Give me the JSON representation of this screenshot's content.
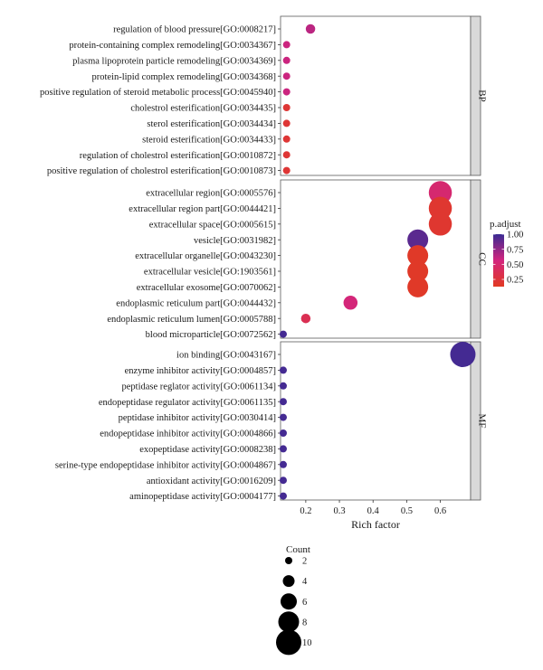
{
  "chart_data": {
    "type": "scatter",
    "xlabel": "Rich factor",
    "ylabel": "",
    "xlim": [
      0.125,
      0.69
    ],
    "x_ticks": [
      "0.2",
      "0.3",
      "0.4",
      "0.5",
      "0.6"
    ],
    "x_tick_values": [
      0.2,
      0.3,
      0.4,
      0.5,
      0.6
    ],
    "grid": false,
    "colors": {
      "low": "#e13a22",
      "mid": "#d3257e",
      "high": "#3a2a93"
    },
    "panels": [
      {
        "name": "BP",
        "terms": [
          {
            "label": "regulation of blood pressure[GO:0008217]",
            "x": 0.214,
            "p": 0.6,
            "count": 3
          },
          {
            "label": "protein-containing complex remodeling[GO:0034367]",
            "x": 0.143,
            "p": 0.55,
            "count": 2
          },
          {
            "label": "plasma lipoprotein particle remodeling[GO:0034369]",
            "x": 0.143,
            "p": 0.55,
            "count": 2
          },
          {
            "label": "protein-lipid complex remodeling[GO:0034368]",
            "x": 0.143,
            "p": 0.55,
            "count": 2
          },
          {
            "label": "positive regulation of steroid metabolic process[GO:0045940]",
            "x": 0.143,
            "p": 0.55,
            "count": 2
          },
          {
            "label": "cholestrol esterification[GO:0034435]",
            "x": 0.143,
            "p": 0.15,
            "count": 2
          },
          {
            "label": "sterol esterification[GO:0034434]",
            "x": 0.143,
            "p": 0.15,
            "count": 2
          },
          {
            "label": "steroid esterification[GO:0034433]",
            "x": 0.143,
            "p": 0.15,
            "count": 2
          },
          {
            "label": "regulation of cholestrol esterification[GO:0010872]",
            "x": 0.143,
            "p": 0.15,
            "count": 2
          },
          {
            "label": "positive regulation of cholestrol esterification[GO:0010873]",
            "x": 0.143,
            "p": 0.15,
            "count": 2
          }
        ]
      },
      {
        "name": "CC",
        "terms": [
          {
            "label": "extracellular region[GO:0005576]",
            "x": 0.6,
            "p": 0.45,
            "count": 9
          },
          {
            "label": "extracellular region part[GO:0044421]",
            "x": 0.6,
            "p": 0.12,
            "count": 9
          },
          {
            "label": "extracellular space[GO:0005615]",
            "x": 0.6,
            "p": 0.12,
            "count": 9
          },
          {
            "label": "vesicle[GO:0031982]",
            "x": 0.533,
            "p": 0.9,
            "count": 8
          },
          {
            "label": "extracellular organelle[GO:0043230]",
            "x": 0.533,
            "p": 0.08,
            "count": 8
          },
          {
            "label": "extracellular vesicle[GO:1903561]",
            "x": 0.533,
            "p": 0.08,
            "count": 8
          },
          {
            "label": "extracellular exosome[GO:0070062]",
            "x": 0.533,
            "p": 0.08,
            "count": 8
          },
          {
            "label": "endoplasmic reticulum part[GO:0044432]",
            "x": 0.333,
            "p": 0.5,
            "count": 5
          },
          {
            "label": "endoplasmic reticulum lumen[GO:0005788]",
            "x": 0.2,
            "p": 0.3,
            "count": 3
          },
          {
            "label": "blood microparticle[GO:0072562]",
            "x": 0.133,
            "p": 0.97,
            "count": 2
          }
        ]
      },
      {
        "name": "MF",
        "terms": [
          {
            "label": "ion binding[GO:0043167]",
            "x": 0.667,
            "p": 0.97,
            "count": 10
          },
          {
            "label": "enzyme inhibitor activity[GO:0004857]",
            "x": 0.133,
            "p": 0.97,
            "count": 2
          },
          {
            "label": "peptidase reglator activity[GO:0061134]",
            "x": 0.133,
            "p": 0.97,
            "count": 2
          },
          {
            "label": "endopeptidase regulator activity[GO:0061135]",
            "x": 0.133,
            "p": 0.97,
            "count": 2
          },
          {
            "label": "peptidase inhibitor activity[GO:0030414]",
            "x": 0.133,
            "p": 0.97,
            "count": 2
          },
          {
            "label": "endopeptidase inhibitor activity[GO:0004866]",
            "x": 0.133,
            "p": 0.97,
            "count": 2
          },
          {
            "label": "exopeptidase activity[GO:0008238]",
            "x": 0.133,
            "p": 0.97,
            "count": 2
          },
          {
            "label": "serine-type endopeptidase inhibitor activity[GO:0004867]",
            "x": 0.133,
            "p": 0.97,
            "count": 2
          },
          {
            "label": "antioxidant activity[GO:0016209]",
            "x": 0.133,
            "p": 0.97,
            "count": 2
          },
          {
            "label": "aminopeptidase activity[GO:0004177]",
            "x": 0.133,
            "p": 0.97,
            "count": 2
          }
        ]
      }
    ],
    "color_legend": {
      "title": "p.adjust",
      "ticks": [
        "1.00",
        "0.75",
        "0.50",
        "0.25"
      ],
      "tick_values": [
        1.0,
        0.75,
        0.5,
        0.25
      ]
    },
    "size_legend": {
      "title": "Count",
      "labels": [
        "2",
        "4",
        "6",
        "8",
        "10"
      ],
      "values": [
        2,
        4,
        6,
        8,
        10
      ]
    }
  }
}
